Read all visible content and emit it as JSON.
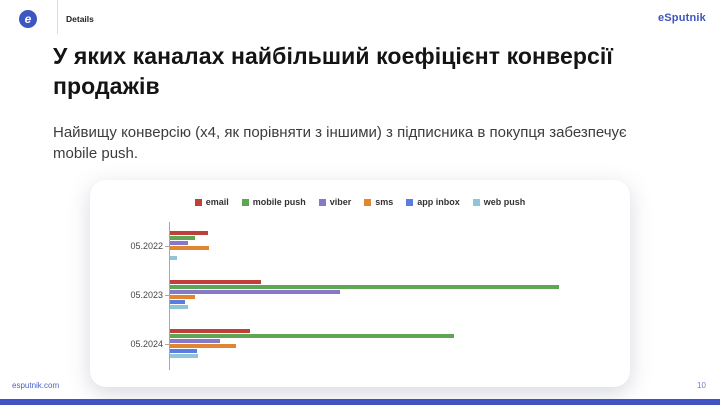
{
  "header": {
    "section_label": "Details",
    "brand": "eSputnik",
    "logo_glyph": "e"
  },
  "slide": {
    "title": "У яких каналах найбільший коефіцієнт конверсії продажів",
    "subtitle": "Найвищу конверсію (х4, як порівняти з іншими) з підписника в покупця забезпечує mobile push."
  },
  "footer": {
    "website": "esputnik.com",
    "page_number": "10"
  },
  "colors": {
    "brand_blue": "#3d56c0",
    "email": "#bf4038",
    "mobile_push": "#5fa555",
    "viber": "#8679ca",
    "sms": "#e08531",
    "app_inbox": "#5b7de0",
    "web_push": "#8ec6d8"
  },
  "chart_data": {
    "type": "bar",
    "orientation": "horizontal",
    "title": "",
    "xlabel": "",
    "ylabel": "",
    "grid": false,
    "legend_position": "top",
    "value_note": "relative conversion rate; mobile push 05.2023 = 100 (no numeric axis shown in chart)",
    "categories": [
      "05.2022",
      "05.2023",
      "05.2024"
    ],
    "series": [
      {
        "name": "email",
        "color": "#bf4038",
        "values": [
          9.8,
          23.4,
          20.6
        ]
      },
      {
        "name": "mobile push",
        "color": "#5fa555",
        "values": [
          6.4,
          100.0,
          73.0
        ]
      },
      {
        "name": "viber",
        "color": "#8679ca",
        "values": [
          4.7,
          43.7,
          12.9
        ]
      },
      {
        "name": "sms",
        "color": "#e08531",
        "values": [
          10.0,
          6.4,
          17.0
        ]
      },
      {
        "name": "app inbox",
        "color": "#5b7de0",
        "values": [
          0,
          3.9,
          6.9
        ]
      },
      {
        "name": "web push",
        "color": "#8ec6d8",
        "values": [
          1.8,
          4.6,
          7.2
        ]
      }
    ]
  }
}
